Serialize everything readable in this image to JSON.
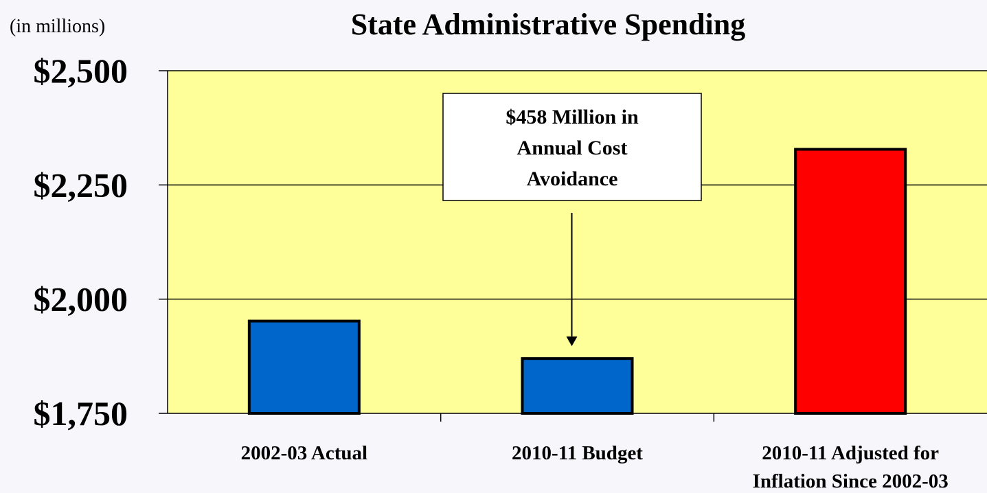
{
  "chart_data": {
    "type": "bar",
    "title": "State Administrative Spending",
    "units_note": "(in millions)",
    "categories": [
      [
        "2002-03 Actual"
      ],
      [
        "2010-11 Budget"
      ],
      [
        "2010-11 Adjusted for",
        "Inflation Since 2002-03"
      ]
    ],
    "values": [
      1952,
      1870,
      2328
    ],
    "bar_colors": [
      "#0066cc",
      "#0066cc",
      "#ff0000"
    ],
    "ylim": [
      1750,
      2500
    ],
    "yticks": [
      1750,
      2000,
      2250,
      2500
    ],
    "ytick_labels": [
      "$1,750",
      "$2,000",
      "$2,250",
      "$2,500"
    ],
    "grid": true,
    "plot_background": "#ffff99",
    "annotation": {
      "lines": [
        "$458 Million in",
        "Annual Cost",
        "Avoidance"
      ],
      "points_to_category": 1
    }
  }
}
